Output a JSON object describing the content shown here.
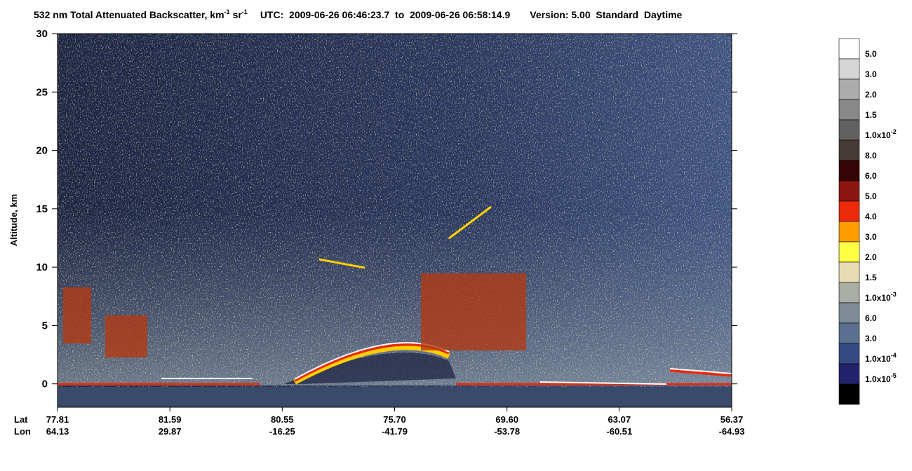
{
  "chart_data": {
    "type": "curtain",
    "title": {
      "text": "532 nm Total Attenuated Backscatter, km",
      "unit_exp": "-1",
      "unit2": "sr",
      "unit2_exp": "-1",
      "utc": "UTC:  2009-06-26 06:46:23.7  to  2009-06-26 06:58:14.9",
      "version": "Version: 5.00  Standard  Daytime"
    },
    "y_label": "Altitude, km",
    "ylim": [
      -2,
      30
    ],
    "yticks": [
      0,
      5,
      10,
      15,
      20,
      25,
      30
    ],
    "x_rows": [
      {
        "name": "Lat",
        "labels": [
          "77.81",
          "81.59",
          "80.55",
          "75.70",
          "69.60",
          "63.07",
          "56.37"
        ]
      },
      {
        "name": "Lon",
        "labels": [
          "64.13",
          "29.87",
          "-16.25",
          "-41.79",
          "-53.78",
          "-60.51",
          "-64.93"
        ]
      }
    ],
    "colorbar": {
      "colors": [
        "#ffffff",
        "#d6d6d6",
        "#ababab",
        "#888888",
        "#616161",
        "#463a36",
        "#360404",
        "#8c1712",
        "#ec2a0a",
        "#ff9c00",
        "#ffff44",
        "#e9dbb1",
        "#a9ada4",
        "#7d8c96",
        "#5b7090",
        "#354a82",
        "#22236c",
        "#000000"
      ],
      "labels": [
        {
          "text": "5.0"
        },
        {
          "text": "3.0"
        },
        {
          "text": "2.0"
        },
        {
          "text": "1.5"
        },
        {
          "text": "1.0x10",
          "exp": "-2"
        },
        {
          "text": "8.0"
        },
        {
          "text": "6.0"
        },
        {
          "text": "5.0"
        },
        {
          "text": "4.0"
        },
        {
          "text": "3.0"
        },
        {
          "text": "2.0"
        },
        {
          "text": "1.5"
        },
        {
          "text": "1.0x10",
          "exp": "-3"
        },
        {
          "text": "6.0"
        },
        {
          "text": "3.0"
        },
        {
          "text": "1.0x10",
          "exp": "-4"
        },
        {
          "text": "1.0x10",
          "exp": "-5"
        }
      ]
    }
  }
}
